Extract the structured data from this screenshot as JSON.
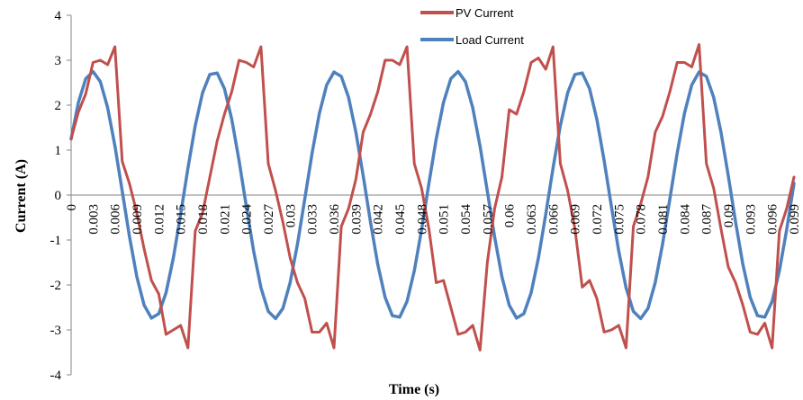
{
  "chart_data": {
    "type": "line",
    "xlabel": "Time (s)",
    "ylabel": "Current (A)",
    "ylim": [
      -4,
      4
    ],
    "yticks": [
      "-4",
      "-3",
      "-2",
      "-1",
      "0",
      "1",
      "2",
      "3",
      "4"
    ],
    "xticks": [
      "0",
      "0.003",
      "0.006",
      "0.009",
      "0.012",
      "0.015",
      "0.018",
      "0.021",
      "0.024",
      "0.027",
      "0.03",
      "0.033",
      "0.036",
      "0.039",
      "0.042",
      "0.045",
      "0.048",
      "0.051",
      "0.054",
      "0.057",
      "0.06",
      "0.063",
      "0.066",
      "0.069",
      "0.072",
      "0.075",
      "0.078",
      "0.081",
      "0.084",
      "0.087",
      "0.09",
      "0.093",
      "0.096",
      "0.099"
    ],
    "grid": false,
    "legend_position": "top-right",
    "x_start": 0,
    "x_step": 0.001,
    "series": [
      {
        "name": "PV Current",
        "color": "#C0504D",
        "values": [
          1.25,
          1.85,
          2.25,
          2.95,
          3.0,
          2.9,
          3.3,
          0.75,
          0.25,
          -0.4,
          -1.2,
          -1.9,
          -2.2,
          -3.1,
          -3.0,
          -2.9,
          -3.4,
          -0.8,
          -0.4,
          0.4,
          1.2,
          1.8,
          2.3,
          3.0,
          2.95,
          2.85,
          3.3,
          0.7,
          0.1,
          -0.6,
          -1.4,
          -1.95,
          -2.3,
          -3.05,
          -3.05,
          -2.85,
          -3.4,
          -0.7,
          -0.3,
          0.35,
          1.4,
          1.8,
          2.3,
          3.0,
          3.0,
          2.9,
          3.3,
          0.7,
          0.15,
          -0.75,
          -1.95,
          -1.9,
          -2.5,
          -3.1,
          -3.05,
          -2.9,
          -3.45,
          -1.5,
          -0.3,
          0.4,
          1.9,
          1.8,
          2.3,
          2.95,
          3.05,
          2.8,
          3.3,
          0.7,
          0.1,
          -0.75,
          -2.05,
          -1.9,
          -2.3,
          -3.05,
          -3.0,
          -2.9,
          -3.4,
          -0.7,
          -0.2,
          0.4,
          1.4,
          1.75,
          2.3,
          2.95,
          2.95,
          2.85,
          3.35,
          0.7,
          0.15,
          -0.75,
          -1.6,
          -1.95,
          -2.45,
          -3.05,
          -3.1,
          -2.85,
          -3.4,
          -0.8,
          -0.3,
          0.4
        ]
      },
      {
        "name": "Load Current",
        "color": "#4F81BD",
        "amplitude": 2.75,
        "phase_at_zero_deg": 27,
        "frequency_hz": 60
      }
    ]
  }
}
